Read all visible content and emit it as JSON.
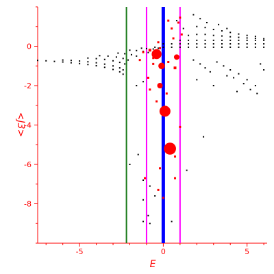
{
  "chart_data": {
    "type": "scatter",
    "title": "",
    "xlabel": "E",
    "ylabel": "<J3>",
    "xlim": [
      -7.5,
      6.2
    ],
    "ylim": [
      -10.0,
      2.0
    ],
    "grid": false,
    "x_ticks": [
      -5,
      0,
      5
    ],
    "x_tick_labels": [
      "-5",
      "0",
      "5"
    ],
    "y_ticks": [
      0,
      -2,
      -4,
      -6,
      -8
    ],
    "y_tick_labels": [
      "0",
      "-2",
      "-4",
      "-6",
      "-8"
    ],
    "colors": {
      "axis": "#ff0000",
      "text": "#ff0000",
      "dots": "#000000",
      "highlight_points": "#ff0000",
      "line_green": "#1a7a1a",
      "line_magenta": "#ff00ff",
      "line_blue": "#0000ff"
    },
    "vertical_lines": [
      {
        "x": -2.2,
        "color": "#1a7a1a"
      },
      {
        "x": -1.0,
        "color": "#ff00ff"
      },
      {
        "x": 0.0,
        "color": "#0000ff"
      },
      {
        "x": 1.0,
        "color": "#ff00ff"
      }
    ],
    "series": [
      {
        "color": "#000000",
        "marker": "dot",
        "points": [
          [
            -7.5,
            -0.72
          ],
          [
            -7.0,
            -0.74
          ],
          [
            -6.5,
            -0.77
          ],
          [
            -6.0,
            -0.8
          ],
          [
            -5.5,
            -0.84
          ],
          [
            -5.0,
            -0.88
          ],
          [
            -4.5,
            -0.93
          ],
          [
            -4.0,
            -0.99
          ],
          [
            -3.5,
            -1.07
          ],
          [
            -3.0,
            -1.18
          ],
          [
            -2.6,
            -1.3
          ],
          [
            -2.4,
            -1.42
          ],
          [
            -6.0,
            -0.7
          ],
          [
            -5.5,
            -0.72
          ],
          [
            -5.0,
            -0.75
          ],
          [
            -4.5,
            -0.79
          ],
          [
            -4.0,
            -0.84
          ],
          [
            -3.5,
            -0.91
          ],
          [
            -3.0,
            -1.0
          ],
          [
            -2.6,
            -1.1
          ],
          [
            -2.4,
            -1.2
          ],
          [
            -4.5,
            -0.6
          ],
          [
            -4.0,
            -0.63
          ],
          [
            -3.5,
            -0.67
          ],
          [
            -3.0,
            -0.74
          ],
          [
            -2.6,
            -0.82
          ],
          [
            -2.3,
            -0.9
          ],
          [
            -3.8,
            -0.48
          ],
          [
            -3.3,
            -0.5
          ],
          [
            -2.8,
            -0.55
          ],
          [
            -2.4,
            -0.62
          ],
          [
            -2.1,
            -0.7
          ],
          [
            -2.7,
            -0.35
          ],
          [
            -2.3,
            -0.38
          ],
          [
            -1.9,
            -0.43
          ],
          [
            -1.6,
            -0.5
          ],
          [
            -2.0,
            -0.2
          ],
          [
            -1.6,
            -0.22
          ],
          [
            -1.2,
            -0.26
          ],
          [
            -0.9,
            -0.32
          ],
          [
            -1.3,
            -0.1
          ],
          [
            -1.0,
            -0.12
          ],
          [
            -0.6,
            -0.14
          ],
          [
            -0.3,
            -0.1
          ],
          [
            -0.5,
            -0.05
          ],
          [
            0.0,
            -0.05
          ],
          [
            0.5,
            -0.05
          ],
          [
            1.0,
            -0.05
          ],
          [
            1.5,
            -0.05
          ],
          [
            2.0,
            -0.05
          ],
          [
            2.5,
            -0.05
          ],
          [
            3.0,
            -0.05
          ],
          [
            3.5,
            -0.05
          ],
          [
            4.0,
            -0.05
          ],
          [
            4.5,
            -0.05
          ],
          [
            5.0,
            -0.05
          ],
          [
            5.5,
            -0.05
          ],
          [
            6.0,
            -0.05
          ],
          [
            0.0,
            0.12
          ],
          [
            0.5,
            0.12
          ],
          [
            1.0,
            0.12
          ],
          [
            1.5,
            0.12
          ],
          [
            2.0,
            0.12
          ],
          [
            2.5,
            0.12
          ],
          [
            3.0,
            0.12
          ],
          [
            3.5,
            0.12
          ],
          [
            4.0,
            0.12
          ],
          [
            4.5,
            0.12
          ],
          [
            5.0,
            0.12
          ],
          [
            5.5,
            0.12
          ],
          [
            6.0,
            0.12
          ],
          [
            1.0,
            0.3
          ],
          [
            1.5,
            0.3
          ],
          [
            2.0,
            0.3
          ],
          [
            2.5,
            0.3
          ],
          [
            3.0,
            0.3
          ],
          [
            3.5,
            0.3
          ],
          [
            4.0,
            0.3
          ],
          [
            4.5,
            0.3
          ],
          [
            5.0,
            0.3
          ],
          [
            5.5,
            0.3
          ],
          [
            6.0,
            0.3
          ],
          [
            1.5,
            0.55
          ],
          [
            2.0,
            0.6
          ],
          [
            2.5,
            0.6
          ],
          [
            3.0,
            0.55
          ],
          [
            3.5,
            0.52
          ],
          [
            4.0,
            0.48
          ],
          [
            4.5,
            0.45
          ],
          [
            5.0,
            0.42
          ],
          [
            5.5,
            0.4
          ],
          [
            6.0,
            0.38
          ],
          [
            2.0,
            1.0
          ],
          [
            2.5,
            0.95
          ],
          [
            3.0,
            0.85
          ],
          [
            3.5,
            0.78
          ],
          [
            4.0,
            0.7
          ],
          [
            4.5,
            0.62
          ],
          [
            5.0,
            0.55
          ],
          [
            5.5,
            0.5
          ],
          [
            1.8,
            1.6
          ],
          [
            2.2,
            1.4
          ],
          [
            2.6,
            1.2
          ],
          [
            0.8,
            1.3
          ],
          [
            1.2,
            0.9
          ],
          [
            3.3,
            1.1
          ],
          [
            3.8,
            0.9
          ],
          [
            1.8,
            -0.7
          ],
          [
            2.2,
            -0.9
          ],
          [
            2.5,
            -1.1
          ],
          [
            2.8,
            -1.3
          ],
          [
            3.2,
            -0.8
          ],
          [
            3.6,
            -1.0
          ],
          [
            4.0,
            -1.2
          ],
          [
            4.5,
            -1.4
          ],
          [
            5.0,
            -1.7
          ],
          [
            5.5,
            -2.0
          ],
          [
            5.2,
            -2.2
          ],
          [
            4.8,
            -1.9
          ],
          [
            3.8,
            -1.5
          ],
          [
            4.2,
            -1.6
          ],
          [
            5.8,
            -0.9
          ],
          [
            6.0,
            -1.2
          ],
          [
            2.0,
            -1.7
          ],
          [
            3.0,
            -2.0
          ],
          [
            4.4,
            -2.3
          ],
          [
            5.6,
            -2.4
          ],
          [
            -2.0,
            -6.0
          ],
          [
            -1.5,
            -5.5
          ],
          [
            -1.2,
            -6.8
          ],
          [
            -0.8,
            -7.1
          ],
          [
            -1.2,
            -7.8
          ],
          [
            -0.9,
            -8.6
          ],
          [
            -1.2,
            -8.9
          ],
          [
            -0.8,
            -9.0
          ],
          [
            -0.5,
            -7.6
          ],
          [
            0.5,
            -8.9
          ],
          [
            1.4,
            -6.3
          ],
          [
            2.4,
            -4.6
          ],
          [
            -1.6,
            -2.0
          ],
          [
            -1.2,
            -1.8
          ]
        ]
      },
      {
        "color": "#ff0000",
        "marker": "square",
        "points": [
          [
            -0.4,
            -0.4,
            9
          ],
          [
            -0.1,
            -1.0,
            6
          ],
          [
            -0.2,
            -2.0,
            5
          ],
          [
            0.1,
            -3.3,
            10
          ],
          [
            0.4,
            -5.2,
            11
          ],
          [
            0.8,
            -0.55,
            5
          ],
          [
            0.7,
            -1.1,
            4
          ],
          [
            -0.8,
            -0.2,
            4
          ],
          [
            -1.4,
            -0.7,
            3
          ],
          [
            -1.2,
            -0.3,
            3
          ],
          [
            -0.6,
            -0.9,
            3
          ],
          [
            0.5,
            0.9,
            3
          ],
          [
            1.1,
            0.6,
            3
          ],
          [
            0.6,
            0.4,
            3
          ],
          [
            -0.3,
            0.2,
            3
          ],
          [
            -0.2,
            -0.1,
            3
          ],
          [
            0.9,
            1.2,
            3
          ],
          [
            0.3,
            1.3,
            3
          ],
          [
            1.0,
            1.45,
            3
          ],
          [
            -0.9,
            -1.6,
            3
          ],
          [
            -0.8,
            -2.2,
            3
          ],
          [
            -0.4,
            -2.8,
            3
          ],
          [
            0.2,
            -2.4,
            3
          ],
          [
            -0.2,
            -6.2,
            3
          ],
          [
            0.7,
            -5.6,
            3
          ],
          [
            -1.1,
            -6.7,
            3
          ],
          [
            0.7,
            -6.7,
            3
          ],
          [
            -0.3,
            -7.3,
            3
          ],
          [
            0.0,
            -7.7,
            3
          ],
          [
            1.0,
            -4.1,
            3
          ],
          [
            -0.6,
            -0.6,
            3
          ],
          [
            0.3,
            -0.8,
            3
          ]
        ]
      }
    ]
  }
}
